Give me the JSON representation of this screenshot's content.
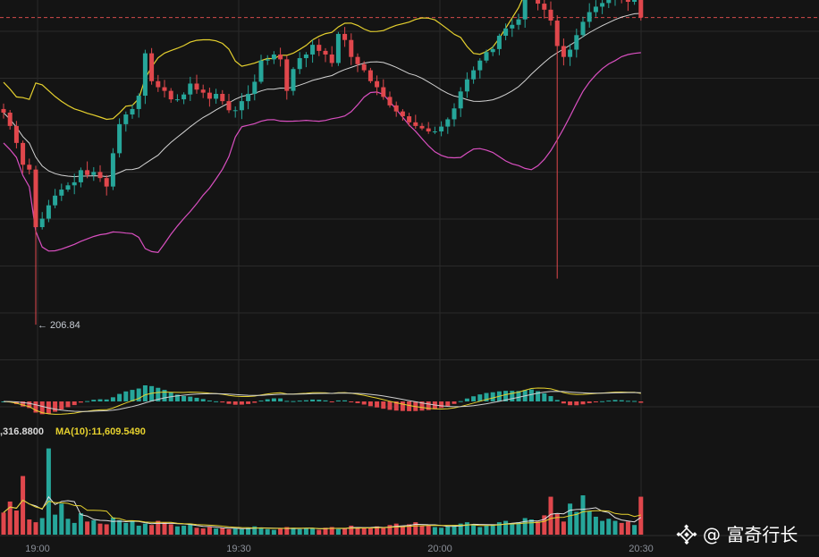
{
  "chart_data": {
    "type": "candlestick",
    "bar_interval": "1m",
    "x_ticks": [
      "19:00",
      "19:30",
      "20:00",
      "20:30"
    ],
    "last_price_line": true,
    "annotation_low": "← 206.84",
    "volume_ma_label": {
      "ma5": ",316.8800",
      "ma10": "MA(10):11,609.5490"
    },
    "colors": {
      "up": "#26a69a",
      "down": "#e0474c",
      "boll_upper": "#e6d12e",
      "boll_mid": "#d4d4d4",
      "boll_lower": "#d94fc0",
      "macd_line": "#e6d12e",
      "macd_signal": "#cfcfcf",
      "background": "#141414",
      "grid": "#2a2a2a",
      "last_price": "#d24a4a"
    },
    "price_range": [
      206.0,
      212.2
    ],
    "price_start": 210.4,
    "bar_returns": [
      -0.06,
      -0.22,
      -0.28,
      -0.36,
      -0.08,
      -0.95,
      0.14,
      0.22,
      0.16,
      0.1,
      0.07,
      0.05,
      0.2,
      -0.08,
      0.05,
      -0.1,
      -0.14,
      0.55,
      0.48,
      0.16,
      0.09,
      0.22,
      0.7,
      -0.46,
      -0.1,
      -0.06,
      -0.14,
      0.0,
      0.08,
      0.18,
      -0.1,
      -0.05,
      -0.1,
      0.08,
      -0.12,
      -0.15,
      0.0,
      0.15,
      0.12,
      0.2,
      0.35,
      0.02,
      0.08,
      -0.08,
      -0.52,
      0.36,
      0.18,
      0.06,
      0.16,
      -0.1,
      -0.06,
      -0.14,
      0.48,
      -0.1,
      -0.28,
      -0.12,
      -0.1,
      -0.18,
      -0.1,
      -0.16,
      -0.14,
      -0.1,
      -0.08,
      -0.1,
      -0.06,
      -0.04,
      -0.05,
      0.0,
      0.08,
      0.12,
      0.18,
      0.28,
      0.2,
      0.15,
      0.16,
      0.14,
      0.05,
      0.22,
      0.12,
      0.06,
      0.09,
      0.42,
      0.16,
      -0.32,
      -0.1,
      -0.18,
      -0.42,
      -0.18,
      0.12,
      0.24,
      0.22,
      0.16,
      0.09,
      0.06,
      0.07,
      0.1,
      -0.1,
      -0.05,
      0.1,
      -0.36
    ],
    "volume_range": [
      0,
      14
    ],
    "volumes": [
      3.2,
      4.8,
      3.5,
      8.5,
      2.2,
      1.8,
      2.4,
      12.5,
      2.9,
      4.5,
      2.3,
      1.7,
      3.1,
      1.9,
      2.1,
      1.6,
      1.5,
      2.5,
      2.1,
      1.7,
      2.0,
      1.3,
      1.6,
      1.4,
      2.0,
      1.8,
      1.5,
      1.2,
      1.3,
      1.6,
      1.0,
      0.9,
      1.1,
      0.9,
      1.0,
      0.8,
      0.9,
      0.8,
      1.0,
      1.2,
      1.0,
      0.8,
      0.7,
      0.9,
      1.1,
      1.0,
      0.8,
      0.9,
      0.9,
      0.7,
      1.0,
      1.1,
      0.8,
      0.9,
      1.3,
      1.1,
      1.0,
      0.9,
      1.2,
      1.0,
      1.4,
      1.6,
      1.2,
      1.5,
      1.8,
      1.3,
      1.4,
      1.1,
      1.0,
      1.2,
      1.4,
      1.6,
      1.8,
      1.5,
      1.1,
      1.3,
      1.5,
      1.8,
      2.0,
      1.6,
      1.8,
      2.4,
      2.2,
      1.9,
      2.8,
      5.5,
      3.0,
      1.9,
      4.5,
      3.3,
      5.7,
      3.4,
      2.6,
      2.0,
      2.3,
      2.0,
      1.7,
      1.9,
      1.4,
      5.5
    ],
    "macd_hist_scale": 1.0
  },
  "watermark": {
    "icon": "binance-diamond-icon",
    "text": "@ 富奇行长"
  }
}
